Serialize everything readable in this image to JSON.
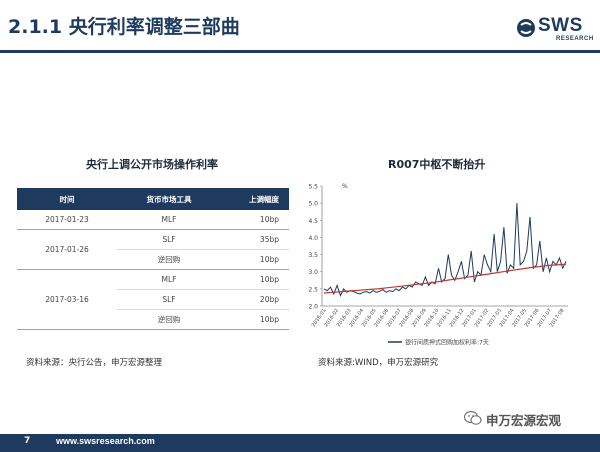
{
  "title": "2.1.1 央行利率调整三部曲",
  "logo": {
    "text": "SWS",
    "sub": "RESEARCH",
    "color": "#1f3a5f"
  },
  "table_section": {
    "title": "央行上调公开市场操作利率",
    "headers": [
      "时间",
      "货币市场工具",
      "上调幅度"
    ],
    "rows": [
      [
        "2017-01-23",
        "MLF",
        "10bp"
      ],
      [
        "2017-01-26",
        "SLF",
        "35bp"
      ],
      [
        "",
        "逆回购",
        "10bp"
      ],
      [
        "",
        "MLF",
        "10bp"
      ],
      [
        "2017-03-16",
        "SLF",
        "20bp"
      ],
      [
        "",
        "逆回购",
        "10bp"
      ]
    ],
    "source": "资料来源：央行公告，申万宏源整理"
  },
  "chart_section": {
    "title": "R007中枢不断抬升",
    "source": "资料来源:WIND，申万宏源研究"
  },
  "chart_data": {
    "type": "line",
    "title": "R007中枢不断抬升",
    "ylabel": "%",
    "ylim": [
      2.0,
      5.5
    ],
    "yticks": [
      2.0,
      2.5,
      3.0,
      3.5,
      4.0,
      4.5,
      5.0,
      5.5
    ],
    "xticks": [
      "2016-01",
      "2016-02",
      "2016-03",
      "2016-04",
      "2016-05",
      "2016-06",
      "2016-07",
      "2016-08",
      "2016-09",
      "2016-10",
      "2016-11",
      "2016-12",
      "2017-01",
      "2017-02",
      "2017-03",
      "2017-04",
      "2017-05",
      "2017-06",
      "2017-07",
      "2017-08"
    ],
    "series": [
      {
        "name": "银行间质押式回购加权利率:7天",
        "color": "#1f3a5f",
        "values": [
          2.5,
          2.45,
          2.55,
          2.35,
          2.6,
          2.3,
          2.5,
          2.4,
          2.45,
          2.42,
          2.38,
          2.35,
          2.4,
          2.42,
          2.38,
          2.45,
          2.4,
          2.43,
          2.48,
          2.4,
          2.45,
          2.42,
          2.5,
          2.45,
          2.55,
          2.5,
          2.6,
          2.55,
          2.7,
          2.65,
          2.6,
          2.85,
          2.6,
          2.7,
          2.65,
          3.1,
          2.7,
          2.8,
          3.5,
          2.9,
          2.75,
          3.0,
          3.3,
          2.8,
          2.9,
          3.6,
          2.7,
          3.0,
          2.9,
          3.5,
          3.2,
          3.0,
          4.1,
          3.0,
          3.3,
          4.3,
          2.95,
          3.2,
          3.1,
          5.0,
          3.2,
          3.3,
          3.6,
          4.6,
          3.1,
          3.2,
          3.9,
          3.0,
          3.4,
          3.0,
          3.3,
          3.2,
          3.4,
          3.1,
          3.3
        ]
      },
      {
        "name": "trend",
        "color": "#c0392b",
        "values": [
          2.38,
          2.4,
          2.42,
          2.44,
          2.46,
          2.48,
          2.5,
          2.53,
          2.56,
          2.59,
          2.62,
          2.65,
          2.68,
          2.72,
          2.76,
          2.8,
          2.84,
          2.88,
          2.92,
          2.96,
          3.0,
          3.04,
          3.08,
          3.12,
          3.15,
          3.18,
          3.2,
          3.22
        ]
      }
    ]
  },
  "wechat": {
    "label": "申万宏源宏观"
  },
  "footer": {
    "page": "7",
    "site": "www.swsresearch.com"
  }
}
